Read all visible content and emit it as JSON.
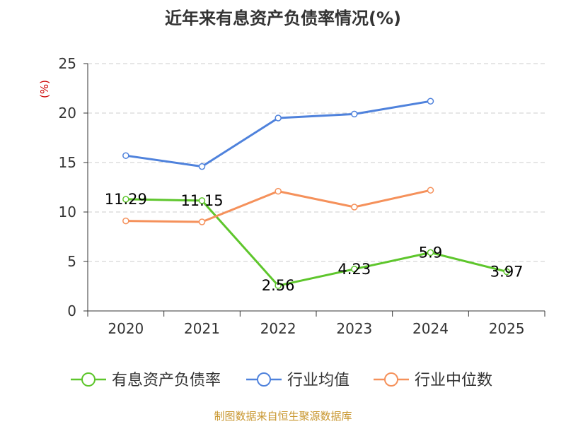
{
  "chart_data": {
    "type": "line",
    "title": "近年来有息资产负债率情况(%)",
    "ylabel": "(%)",
    "xlabel": "",
    "categories": [
      "2020",
      "2021",
      "2022",
      "2023",
      "2024",
      "2025"
    ],
    "ylim": [
      0,
      25
    ],
    "yticks": [
      0,
      5,
      10,
      15,
      20,
      25
    ],
    "grid": true,
    "legend_position": "bottom",
    "series": [
      {
        "name": "有息资产负债率",
        "color": "#5ec62c",
        "values": [
          11.29,
          11.15,
          2.56,
          4.23,
          5.9,
          3.97
        ],
        "labels": [
          "11.29",
          "11.15",
          "2.56",
          "4.23",
          "5.9",
          "3.97"
        ]
      },
      {
        "name": "行业均值",
        "color": "#4f82dc",
        "values": [
          15.7,
          14.6,
          19.5,
          19.9,
          21.2,
          null
        ]
      },
      {
        "name": "行业中位数",
        "color": "#f5915b",
        "values": [
          9.1,
          9.0,
          12.1,
          10.5,
          12.2,
          null
        ]
      }
    ]
  },
  "footer": {
    "source": "制图数据来自恒生聚源数据库"
  },
  "colors": {
    "title": "#333333",
    "axis": "#333333",
    "grid": "#cccccc",
    "ylabel": "#cc0000",
    "source": "#c8962e"
  }
}
